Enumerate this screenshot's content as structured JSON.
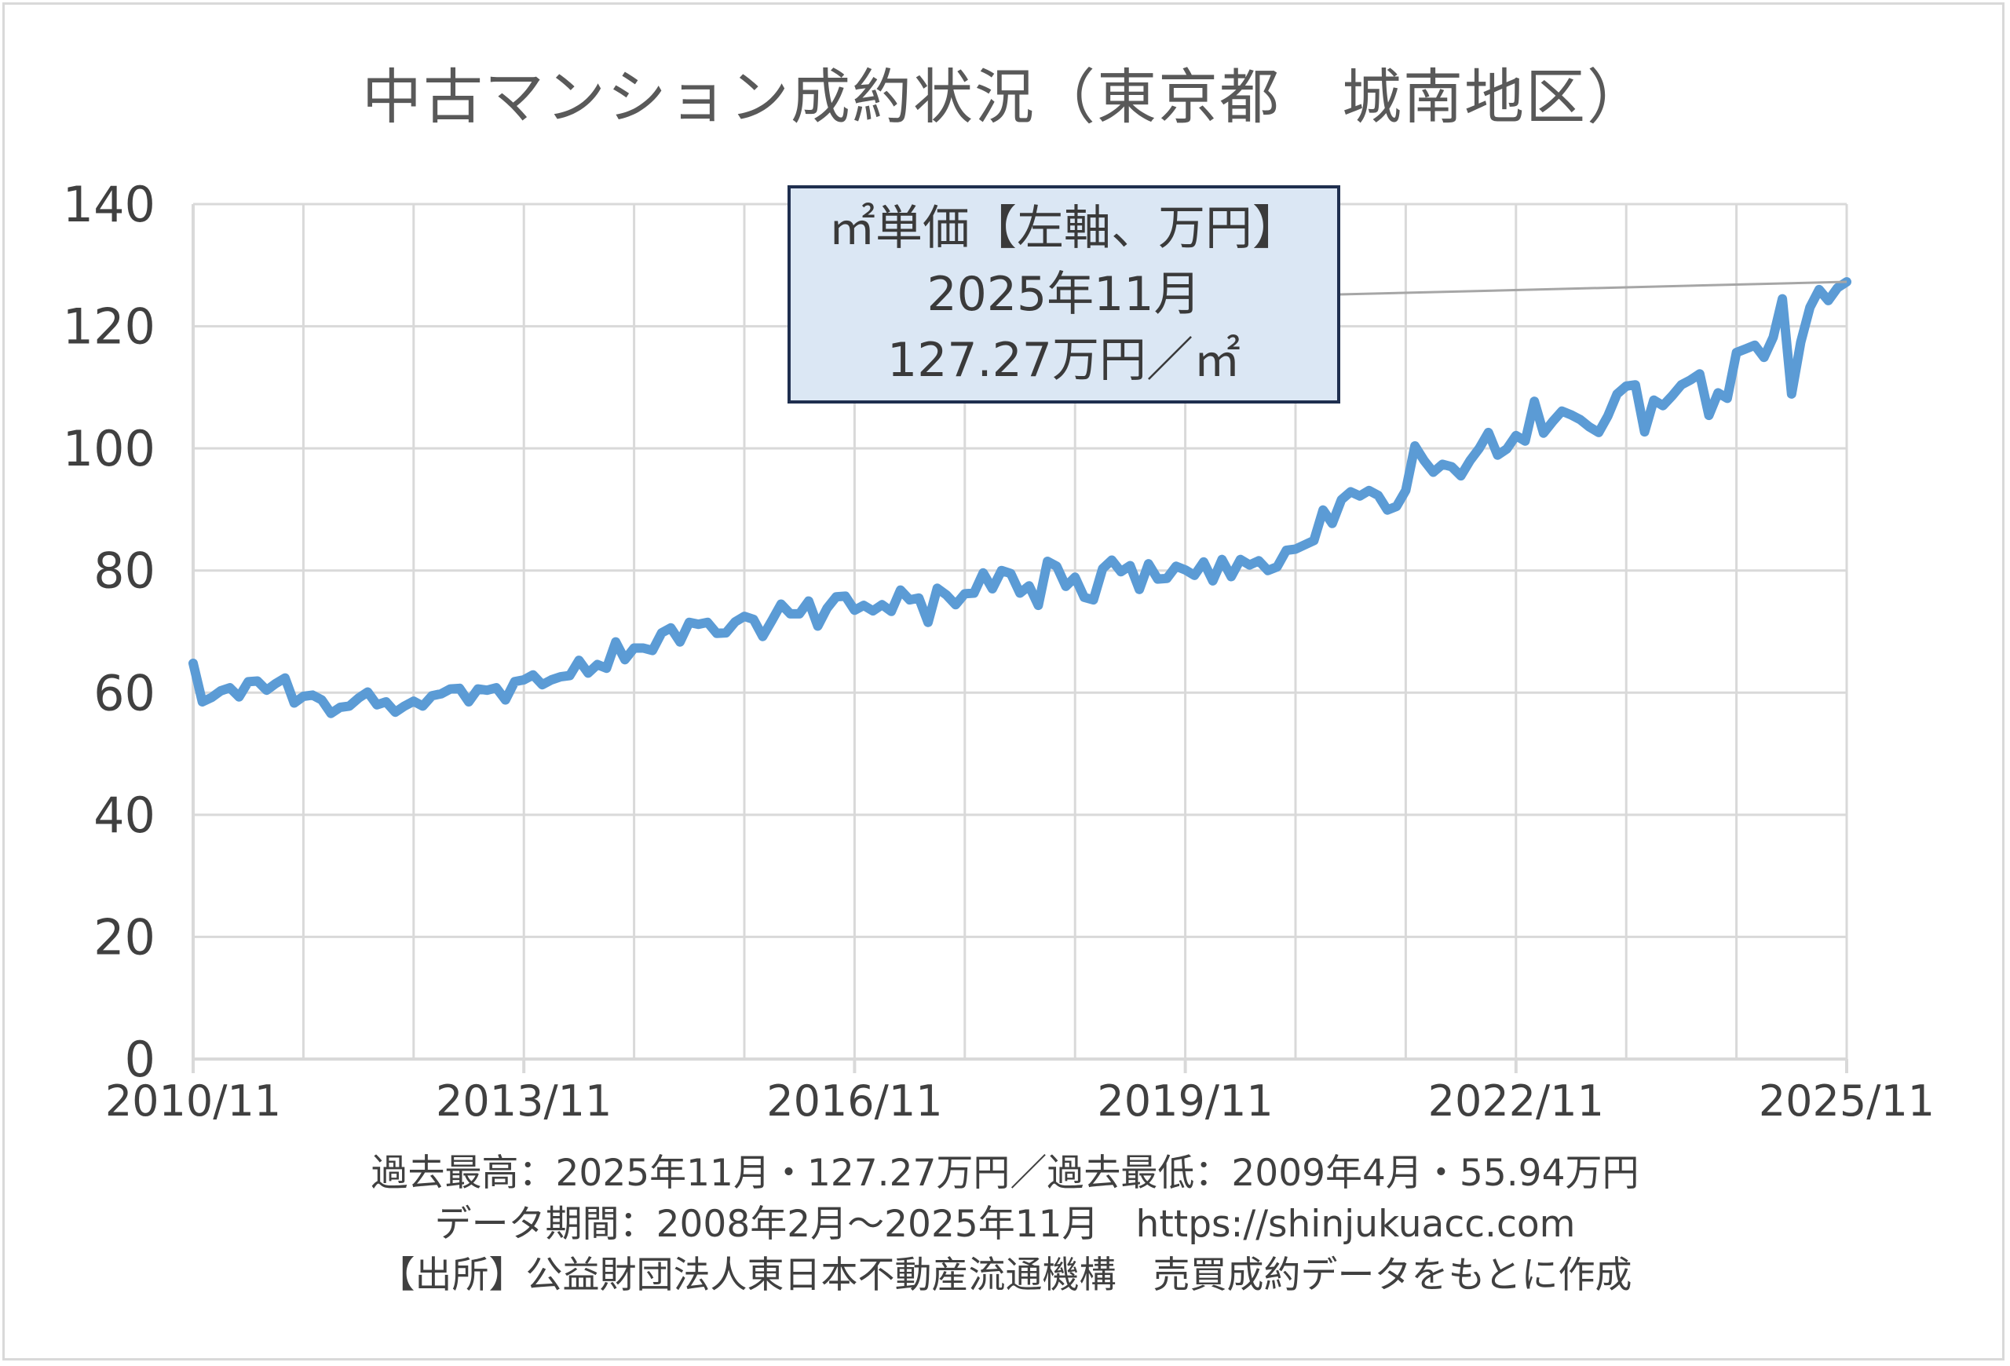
{
  "title": "中古マンション成約状況（東京都　城南地区）",
  "callout": {
    "line1": "㎡単価【左軸、万円】",
    "line2": "2025年11月",
    "line3": "127.27万円／㎡"
  },
  "footer": {
    "line1": "過去最高：2025年11月・127.27万円／過去最低：2009年4月・55.94万円",
    "line2": "データ期間：2008年2月～2025年11月　https://shinjukuacc.com",
    "line3": "【出所】公益財団法人東日本不動産流通機構　売買成約データをもとに作成"
  },
  "colors": {
    "line": "#5b9bd5",
    "grid": "#d9d9d9",
    "axis": "#d9d9d9",
    "callout_fill": "#dbe7f4",
    "callout_border": "#1f2f4f",
    "leader": "#a6a6a6"
  },
  "chart_data": {
    "type": "line",
    "x_start": "2010/11",
    "x_end": "2025/11",
    "xtick_labels": [
      "2010/11",
      "2013/11",
      "2016/11",
      "2019/11",
      "2022/11",
      "2025/11"
    ],
    "ytick_labels": [
      "0",
      "20",
      "40",
      "60",
      "80",
      "100",
      "120",
      "140"
    ],
    "ylim": [
      0,
      140
    ],
    "grid": true,
    "series": [
      {
        "values": [
          64.8,
          58.5,
          59.2,
          60.3,
          60.8,
          59.3,
          61.8,
          61.9,
          60.4,
          61.5,
          62.4,
          58.3,
          59.4,
          59.6,
          58.8,
          56.6,
          57.6,
          57.8,
          59.1,
          60.1,
          58.0,
          58.5,
          56.8,
          57.8,
          58.6,
          57.8,
          59.5,
          59.8,
          60.6,
          60.7,
          58.5,
          60.6,
          60.4,
          60.8,
          58.8,
          61.8,
          62.1,
          62.9,
          61.3,
          62.1,
          62.6,
          62.8,
          65.3,
          63.2,
          64.6,
          64.0,
          68.3,
          65.4,
          67.3,
          67.3,
          66.9,
          69.8,
          70.6,
          68.3,
          71.5,
          71.2,
          71.5,
          69.7,
          69.8,
          71.6,
          72.5,
          72.0,
          69.2,
          71.8,
          74.5,
          72.9,
          72.9,
          75.0,
          70.9,
          73.8,
          75.7,
          75.8,
          73.5,
          74.3,
          73.4,
          74.4,
          73.3,
          76.8,
          75.2,
          75.5,
          71.5,
          77.1,
          76.0,
          74.4,
          76.2,
          76.3,
          79.6,
          77.0,
          80.0,
          79.5,
          76.3,
          77.5,
          74.3,
          81.5,
          80.7,
          77.4,
          78.9,
          75.6,
          75.2,
          80.3,
          81.7,
          79.8,
          80.8,
          76.9,
          81.1,
          78.6,
          78.7,
          80.7,
          80.1,
          79.2,
          81.4,
          78.3,
          81.8,
          79.0,
          81.8,
          80.9,
          81.6,
          80.0,
          80.6,
          83.3,
          83.5,
          84.2,
          84.9,
          89.9,
          87.7,
          91.6,
          92.9,
          92.2,
          93.1,
          92.3,
          89.9,
          90.5,
          93.1,
          100.4,
          98.0,
          96.1,
          97.4,
          97.0,
          95.5,
          98.0,
          100.0,
          102.6,
          98.9,
          99.9,
          102.1,
          101.2,
          107.7,
          102.5,
          104.4,
          106.1,
          105.5,
          104.7,
          103.5,
          102.6,
          105.3,
          108.9,
          110.2,
          110.4,
          102.7,
          107.9,
          107.0,
          108.6,
          110.4,
          111.2,
          112.2,
          105.4,
          109.1,
          108.2,
          115.7,
          116.3,
          116.9,
          114.9,
          118.2,
          124.5,
          108.9,
          117.4,
          123.1,
          126.0,
          124.2,
          126.3,
          127.27
        ]
      }
    ]
  }
}
